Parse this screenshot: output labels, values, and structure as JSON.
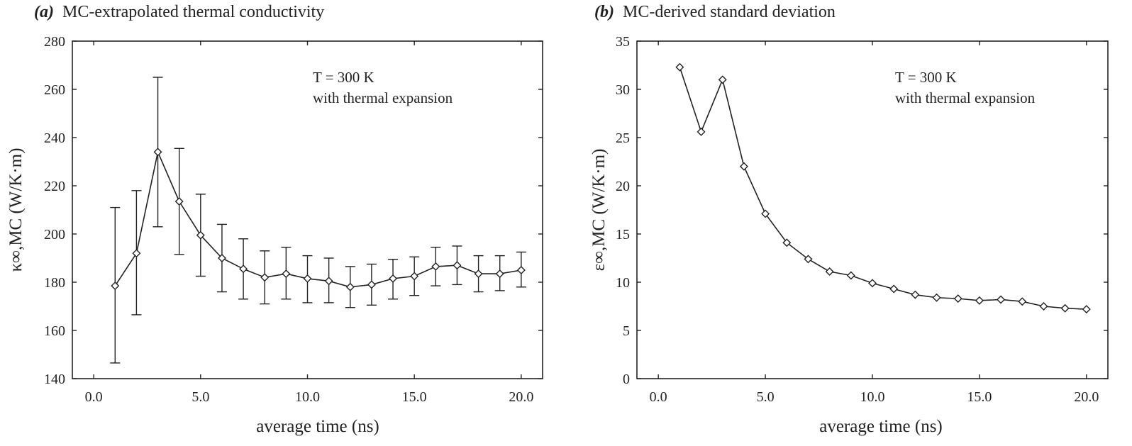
{
  "chart_data": [
    {
      "type": "line",
      "panel_label": "(a)",
      "title": "MC-extrapolated thermal conductivity",
      "xlabel": "average time (ns)",
      "ylabel": "κ∞,MC (W/K·m)",
      "xlim": [
        -1.0,
        21.0
      ],
      "ylim": [
        140,
        280
      ],
      "xticks": [
        0,
        5,
        10,
        15,
        20
      ],
      "xtick_labels": [
        "0.0",
        "5.0",
        "10.0",
        "15.0",
        "20.0"
      ],
      "yticks": [
        140,
        160,
        180,
        200,
        220,
        240,
        260,
        280
      ],
      "ytick_labels": [
        "140",
        "160",
        "180",
        "200",
        "220",
        "240",
        "260",
        "280"
      ],
      "annotation": [
        "T = 300 K",
        "with thermal expansion"
      ],
      "grid": false,
      "x": [
        1,
        2,
        3,
        4,
        5,
        6,
        7,
        8,
        9,
        10,
        11,
        12,
        13,
        14,
        15,
        16,
        17,
        18,
        19,
        20
      ],
      "y": [
        178.5,
        192.0,
        234.0,
        213.5,
        199.5,
        190.0,
        185.5,
        182.0,
        183.5,
        181.5,
        180.5,
        178.0,
        179.0,
        181.5,
        182.5,
        186.5,
        187.0,
        183.5,
        183.5,
        185.0
      ],
      "error_upper": [
        211,
        218,
        265,
        235.5,
        216.5,
        204,
        198,
        193,
        194.5,
        191,
        190,
        186.5,
        187.5,
        189.5,
        190.5,
        194.5,
        195,
        191,
        191,
        192.5
      ],
      "error_lower": [
        146.5,
        166.5,
        203,
        191.5,
        182.5,
        176,
        173,
        171,
        173,
        171.5,
        171.5,
        169.5,
        170.5,
        173,
        174.5,
        178.5,
        179,
        176,
        176.5,
        178
      ]
    },
    {
      "type": "line",
      "panel_label": "(b)",
      "title": "MC-derived standard deviation",
      "xlabel": "average time (ns)",
      "ylabel": "ε∞,MC (W/K·m)",
      "xlim": [
        -1.0,
        21.0
      ],
      "ylim": [
        0,
        35
      ],
      "xticks": [
        0,
        5,
        10,
        15,
        20
      ],
      "xtick_labels": [
        "0.0",
        "5.0",
        "10.0",
        "15.0",
        "20.0"
      ],
      "yticks": [
        0,
        5,
        10,
        15,
        20,
        25,
        30,
        35
      ],
      "ytick_labels": [
        "0",
        "5",
        "10",
        "15",
        "20",
        "25",
        "30",
        "35"
      ],
      "annotation": [
        "T = 300 K",
        "with thermal expansion"
      ],
      "grid": false,
      "x": [
        1,
        2,
        3,
        4,
        5,
        6,
        7,
        8,
        9,
        10,
        11,
        12,
        13,
        14,
        15,
        16,
        17,
        18,
        19,
        20
      ],
      "y": [
        32.3,
        25.6,
        31.0,
        22.0,
        17.1,
        14.1,
        12.4,
        11.1,
        10.7,
        9.9,
        9.3,
        8.7,
        8.4,
        8.3,
        8.1,
        8.2,
        8.0,
        7.5,
        7.3,
        7.2
      ]
    }
  ]
}
